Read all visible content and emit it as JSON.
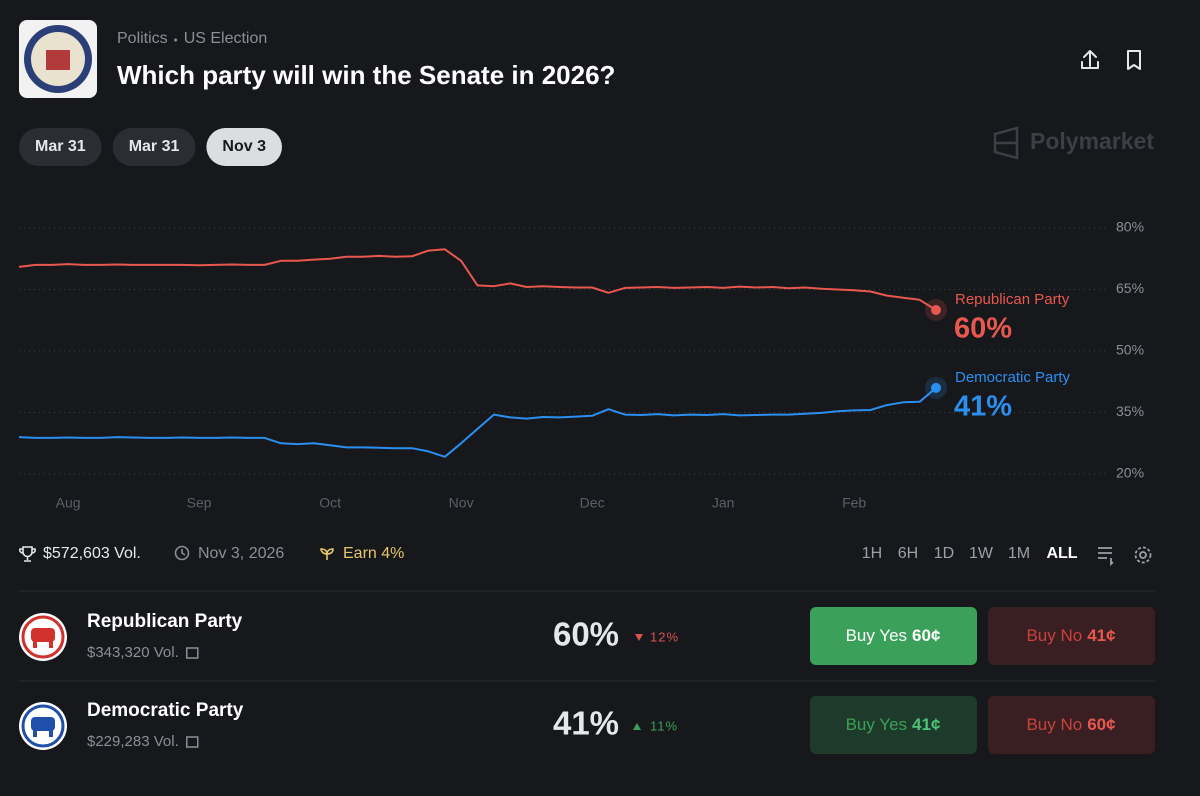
{
  "header": {
    "breadcrumb": [
      "Politics",
      "US Election"
    ],
    "title": "Which party will win the Senate in 2026?"
  },
  "date_tabs": [
    "Mar 31",
    "Mar 31",
    "Nov 3"
  ],
  "selected_tab": 2,
  "brand": "Polymarket",
  "chart_data": {
    "type": "line",
    "categories": [
      null,
      null,
      null,
      "Aug",
      null,
      null,
      null,
      null,
      null,
      null,
      null,
      "Sep",
      null,
      null,
      null,
      null,
      null,
      null,
      null,
      "Oct",
      null,
      null,
      null,
      null,
      null,
      null,
      null,
      "Nov",
      null,
      null,
      null,
      null,
      null,
      null,
      null,
      "Dec",
      null,
      null,
      null,
      null,
      null,
      null,
      null,
      "Jan",
      null,
      null,
      null,
      null,
      null,
      null,
      null,
      "Feb",
      null,
      null,
      null,
      null,
      null
    ],
    "series": [
      {
        "name": "Republican Party",
        "color": "#e8584e",
        "end_label": "60%",
        "values": [
          70.5,
          71,
          71,
          71.2,
          71,
          71,
          71.1,
          71,
          71,
          71,
          71,
          70.9,
          71,
          71.1,
          71,
          71,
          72,
          72,
          72.3,
          72.5,
          73,
          73,
          73.2,
          73,
          73.1,
          74.5,
          74.8,
          72,
          66,
          65.8,
          66.5,
          65.6,
          65.8,
          65.6,
          65.5,
          65.5,
          64.2,
          65.4,
          65.5,
          65.6,
          65.4,
          65.5,
          65.6,
          65.4,
          65.7,
          65.5,
          65.6,
          65.3,
          65.5,
          65.2,
          65,
          64.8,
          64.5,
          63.5,
          63,
          62.5,
          60
        ]
      },
      {
        "name": "Democratic Party",
        "color": "#2b8ff0",
        "end_label": "41%",
        "values": [
          29,
          28.8,
          28.8,
          28.9,
          28.8,
          28.8,
          29,
          28.9,
          28.8,
          28.8,
          28.9,
          28.8,
          28.8,
          28.9,
          28.8,
          28.8,
          27.5,
          27.3,
          27.5,
          27,
          26.5,
          26.5,
          26.4,
          26.3,
          26.3,
          25.5,
          24.2,
          27.5,
          31,
          34.5,
          33.8,
          33.5,
          33.9,
          33.8,
          34,
          34.2,
          35.8,
          34.5,
          34.4,
          34.6,
          34.3,
          34.5,
          34.4,
          34.6,
          34.3,
          34.4,
          34.5,
          34.5,
          34.7,
          34.9,
          35.3,
          35.5,
          35.6,
          36.8,
          37.5,
          37.6,
          41
        ]
      }
    ],
    "ylim": [
      20,
      80
    ],
    "yticks": [
      {
        "value": 80,
        "label": "80%"
      },
      {
        "value": 65,
        "label": "65%"
      },
      {
        "value": 50,
        "label": "50%"
      },
      {
        "value": 35,
        "label": "35%"
      },
      {
        "value": 20,
        "label": "20%"
      }
    ],
    "grid": true
  },
  "stats": {
    "volume": "$572,603 Vol.",
    "end_date": "Nov 3, 2026",
    "earn": "Earn 4%"
  },
  "ranges": [
    "1H",
    "6H",
    "1D",
    "1W",
    "1M",
    "ALL"
  ],
  "selected_range": 5,
  "outcomes": [
    {
      "name": "Republican Party",
      "volume": "$343,320 Vol.",
      "chance": "60%",
      "change": "12%",
      "change_dir": "down",
      "buy_yes": "Buy Yes",
      "yes_price": "60¢",
      "buy_no": "Buy No",
      "no_price": "41¢",
      "highlight": true
    },
    {
      "name": "Democratic Party",
      "volume": "$229,283 Vol.",
      "chance": "41%",
      "change": "11%",
      "change_dir": "up",
      "buy_yes": "Buy Yes",
      "yes_price": "41¢",
      "buy_no": "Buy No",
      "no_price": "60¢",
      "highlight": false
    }
  ]
}
